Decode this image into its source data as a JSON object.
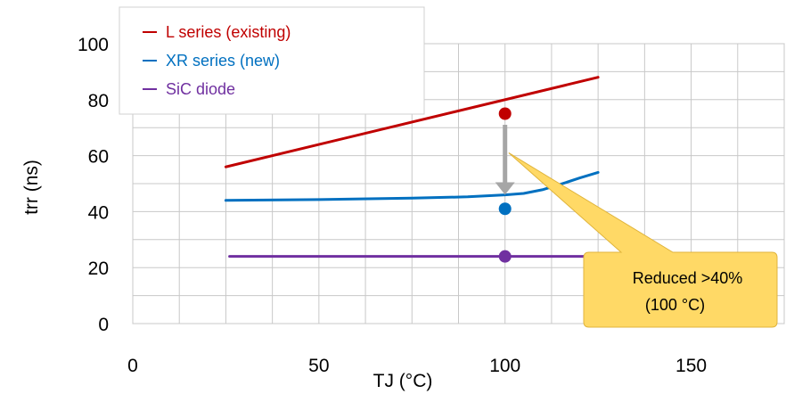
{
  "chart_data": {
    "type": "line",
    "xlabel": "TJ  (°C)",
    "ylabel": "trr (ns)",
    "xlim": [
      0,
      175
    ],
    "ylim": [
      0,
      100
    ],
    "x_ticks": [
      0,
      50,
      100,
      150
    ],
    "y_ticks": [
      0,
      20,
      40,
      60,
      80,
      100
    ],
    "grid": true,
    "legend_position": "top-left",
    "series": [
      {
        "name": "L series (existing)",
        "color": "#C00000",
        "x": [
          25,
          125
        ],
        "y": [
          56,
          88
        ],
        "marker": {
          "x": 100,
          "y": 75
        }
      },
      {
        "name": "XR series (new)",
        "color": "#0070C0",
        "x": [
          25,
          50,
          75,
          90,
          100,
          105,
          110,
          115,
          120,
          125
        ],
        "y": [
          44,
          44.3,
          44.8,
          45.3,
          46,
          46.5,
          47.8,
          49.8,
          52,
          54
        ],
        "marker": {
          "x": 100,
          "y": 41
        }
      },
      {
        "name": "SiC diode",
        "color": "#7030A0",
        "x": [
          26,
          125
        ],
        "y": [
          24,
          24
        ],
        "marker": {
          "x": 100,
          "y": 24
        }
      }
    ],
    "arrow": {
      "x": 100,
      "from_y": 71,
      "to_y": 46,
      "color": "#A6A6A6"
    },
    "annotation": {
      "line1": "Reduced >40%",
      "line2": "(100 °C)",
      "fill": "#FFD966",
      "stroke": "#E0B43C",
      "pointer_to": {
        "x": 101,
        "y": 61
      }
    }
  }
}
